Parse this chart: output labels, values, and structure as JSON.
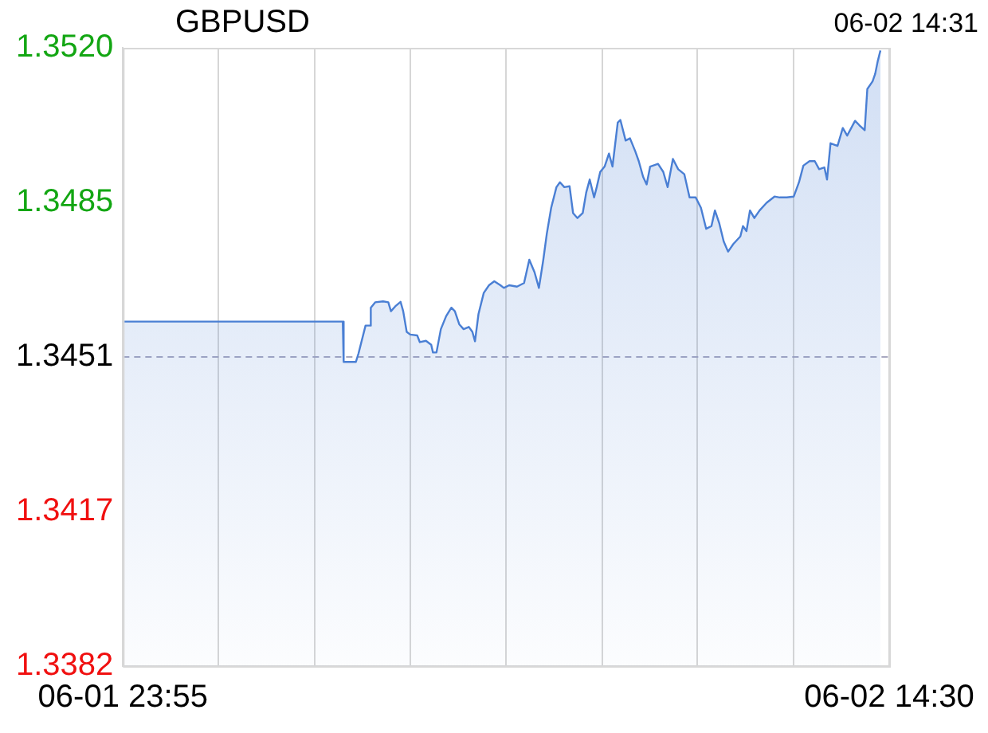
{
  "chart_data": {
    "type": "area",
    "title": "GBPUSD",
    "annotations": [
      "06-02 14:31"
    ],
    "x": [
      "--06-01T23:55",
      "--06-02T04:06",
      "--06-02T04:07",
      "--06-02T04:21",
      "--06-02T04:24",
      "--06-02T04:32",
      "--06-02T04:37",
      "--06-02T04:38",
      "--06-02T04:43",
      "--06-02T04:52",
      "--06-02T04:58",
      "--06-02T05:01",
      "--06-02T05:06",
      "--06-02T05:12",
      "--06-02T05:15",
      "--06-02T05:19",
      "--06-02T05:23",
      "--06-02T05:31",
      "--06-02T05:34",
      "--06-02T05:41",
      "--06-02T05:47",
      "--06-02T05:49",
      "--06-02T05:53",
      "--06-02T05:58",
      "--06-02T06:04",
      "--06-02T06:10",
      "--06-02T06:14",
      "--06-02T06:19",
      "--06-02T06:24",
      "--06-02T06:30",
      "--06-02T06:34",
      "--06-02T06:37",
      "--06-02T06:41",
      "--06-02T06:47",
      "--06-02T06:53",
      "--06-02T06:59",
      "--06-02T07:06",
      "--06-02T07:10",
      "--06-02T07:16",
      "--06-02T07:25",
      "--06-02T07:33",
      "--06-02T07:39",
      "--06-02T07:45",
      "--06-02T07:50",
      "--06-02T07:55",
      "--06-02T07:59",
      "--06-02T08:04",
      "--06-02T08:10",
      "--06-02T08:14",
      "--06-02T08:19",
      "--06-02T08:25",
      "--06-02T08:29",
      "--06-02T08:34",
      "--06-02T08:40",
      "--06-02T08:44",
      "--06-02T08:48",
      "--06-02T08:53",
      "--06-02T08:56",
      "--06-02T09:00",
      "--06-02T09:05",
      "--06-02T09:10",
      "--06-02T09:14",
      "--06-02T09:20",
      "--06-02T09:23",
      "--06-02T09:29",
      "--06-02T09:34",
      "--06-02T09:40",
      "--06-02T09:44",
      "--06-02T09:49",
      "--06-02T09:53",
      "--06-02T09:57",
      "--06-02T10:06",
      "--06-02T10:12",
      "--06-02T10:17",
      "--06-02T10:23",
      "--06-02T10:29",
      "--06-02T10:36",
      "--06-02T10:42",
      "--06-02T10:49",
      "--06-02T10:55",
      "--06-02T11:01",
      "--06-02T11:07",
      "--06-02T11:11",
      "--06-02T11:16",
      "--06-02T11:21",
      "--06-02T11:26",
      "--06-02T11:32",
      "--06-02T11:40",
      "--06-02T11:43",
      "--06-02T11:47",
      "--06-02T11:51",
      "--06-02T11:56",
      "--06-02T12:02",
      "--06-02T12:10",
      "--06-02T12:19",
      "--06-02T12:25",
      "--06-02T12:33",
      "--06-02T12:41",
      "--06-02T12:47",
      "--06-02T12:52",
      "--06-02T12:59",
      "--06-02T13:05",
      "--06-02T13:10",
      "--06-02T13:16",
      "--06-02T13:19",
      "--06-02T13:23",
      "--06-02T13:31",
      "--06-02T13:37",
      "--06-02T13:42",
      "--06-02T13:51",
      "--06-02T13:56",
      "--06-02T14:02",
      "--06-02T14:05",
      "--06-02T14:11",
      "--06-02T14:14",
      "--06-02T14:17",
      "--06-02T14:20"
    ],
    "series": [
      {
        "color": "#4a7fd4",
        "values": [
          1.34589,
          1.34589,
          1.34499,
          1.34499,
          1.34518,
          1.3458,
          1.3458,
          1.3462,
          1.34632,
          1.34634,
          1.34632,
          1.34612,
          1.34623,
          1.34633,
          1.34612,
          1.34566,
          1.3456,
          1.34558,
          1.34543,
          1.34546,
          1.34537,
          1.3452,
          1.3452,
          1.34572,
          1.34601,
          1.3462,
          1.34612,
          1.34583,
          1.34572,
          1.34577,
          1.34566,
          1.34545,
          1.34606,
          1.34653,
          1.3467,
          1.34679,
          1.3467,
          1.34664,
          1.3467,
          1.34667,
          1.34675,
          1.34727,
          1.34699,
          1.34664,
          1.34727,
          1.34785,
          1.34843,
          1.34889,
          1.349,
          1.34889,
          1.34891,
          1.34831,
          1.3482,
          1.34831,
          1.34877,
          1.34906,
          1.34866,
          1.34889,
          1.34923,
          1.34935,
          1.34964,
          1.34935,
          1.35033,
          1.35039,
          1.34993,
          1.34998,
          1.34969,
          1.34947,
          1.34912,
          1.34895,
          1.34935,
          1.34941,
          1.34923,
          1.34889,
          1.34952,
          1.34929,
          1.34918,
          1.34866,
          1.34866,
          1.34843,
          1.34796,
          1.34802,
          1.34837,
          1.34808,
          1.34768,
          1.34745,
          1.34762,
          1.34779,
          1.34802,
          1.34791,
          1.34837,
          1.3482,
          1.34837,
          1.34854,
          1.34868,
          1.34866,
          1.34866,
          1.34868,
          1.349,
          1.34937,
          1.34947,
          1.34947,
          1.34929,
          1.34933,
          1.34906,
          1.34987,
          1.34981,
          1.35021,
          1.35004,
          1.35037,
          1.35027,
          1.35016,
          1.35108,
          1.35125,
          1.35142,
          1.35171,
          1.35194
        ]
      }
    ],
    "xlim": [
      "--06-01T23:55",
      "--06-02T14:30"
    ],
    "xticks": [
      {
        "value": "--06-01T23:55",
        "label": "06-01 23:55"
      },
      {
        "value": "--06-02T01:44",
        "label": null
      },
      {
        "value": "--06-02T03:34",
        "label": null
      },
      {
        "value": "--06-02T05:23",
        "label": null
      },
      {
        "value": "--06-02T07:12",
        "label": null
      },
      {
        "value": "--06-02T09:02",
        "label": null
      },
      {
        "value": "--06-02T10:51",
        "label": null
      },
      {
        "value": "--06-02T12:41",
        "label": null
      },
      {
        "value": "--06-02T14:30",
        "label": "06-02 14:30"
      }
    ],
    "ylim": [
      1.3382,
      1.352
    ],
    "yticks": [
      1.3382,
      {
        "value": 1.34165,
        "label": "1.3417"
      },
      1.3451,
      {
        "value": 1.34855,
        "label": "1.3485"
      },
      {
        "value": 1.352,
        "label": "1.3520"
      }
    ],
    "ref_lines": [
      {
        "axis": "y",
        "value": 1.3451,
        "color": "#a8a8c0",
        "line_style": "dashed"
      }
    ],
    "grid": "x",
    "legend": false
  }
}
